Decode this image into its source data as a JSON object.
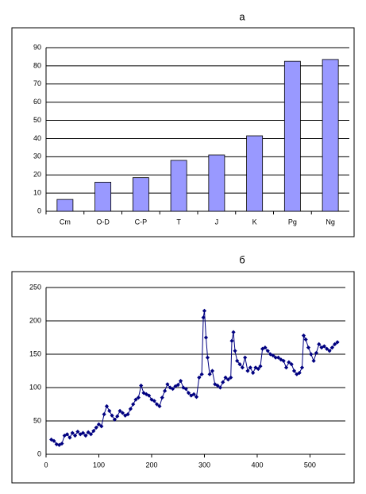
{
  "chart_data": [
    {
      "type": "bar",
      "title": "а",
      "categories": [
        "Cm",
        "O-D",
        "C-P",
        "T",
        "J",
        "K",
        "Pg",
        "Ng"
      ],
      "values": [
        6.5,
        16,
        18.5,
        28,
        31,
        41.5,
        82.5,
        83.5
      ],
      "color": "#9999ff",
      "ylim": [
        0,
        90
      ],
      "yticks": [
        0,
        10,
        20,
        30,
        40,
        50,
        60,
        70,
        80,
        90
      ],
      "grid": true
    },
    {
      "type": "line",
      "title": "б",
      "color": "#000080",
      "x": [
        10,
        15,
        20,
        25,
        30,
        35,
        40,
        45,
        50,
        55,
        60,
        65,
        70,
        75,
        80,
        85,
        90,
        95,
        100,
        105,
        110,
        115,
        120,
        125,
        130,
        135,
        140,
        145,
        150,
        155,
        160,
        165,
        170,
        175,
        180,
        185,
        190,
        195,
        200,
        205,
        210,
        215,
        220,
        225,
        230,
        235,
        240,
        245,
        250,
        255,
        260,
        265,
        270,
        275,
        280,
        285,
        290,
        295,
        298,
        300,
        303,
        306,
        310,
        315,
        320,
        325,
        330,
        335,
        340,
        345,
        350,
        352,
        355,
        358,
        362,
        367,
        372,
        377,
        382,
        387,
        392,
        397,
        402,
        406,
        410,
        415,
        420,
        425,
        430,
        435,
        440,
        445,
        450,
        455,
        460,
        465,
        470,
        475,
        480,
        485,
        488,
        492,
        497,
        502,
        507,
        512,
        517,
        522,
        527,
        532,
        537,
        542,
        547,
        552
      ],
      "values": [
        22,
        20,
        15,
        14,
        16,
        28,
        30,
        25,
        32,
        28,
        34,
        30,
        32,
        28,
        33,
        30,
        35,
        40,
        45,
        42,
        60,
        72,
        65,
        58,
        52,
        57,
        65,
        62,
        58,
        60,
        68,
        75,
        82,
        85,
        103,
        92,
        90,
        88,
        82,
        80,
        75,
        72,
        85,
        95,
        105,
        100,
        98,
        102,
        104,
        110,
        100,
        98,
        92,
        88,
        90,
        86,
        115,
        120,
        205,
        215,
        175,
        145,
        120,
        125,
        105,
        103,
        100,
        108,
        115,
        112,
        115,
        170,
        183,
        155,
        140,
        135,
        130,
        145,
        125,
        130,
        122,
        130,
        128,
        132,
        158,
        160,
        155,
        150,
        148,
        145,
        145,
        142,
        140,
        130,
        138,
        135,
        125,
        120,
        122,
        130,
        178,
        172,
        160,
        150,
        140,
        152,
        165,
        160,
        162,
        158,
        155,
        160,
        165,
        168
      ],
      "xlim": [
        0,
        567
      ],
      "xticks": [
        0,
        100,
        200,
        300,
        400,
        500
      ],
      "ylim": [
        0,
        250
      ],
      "yticks": [
        0,
        50,
        100,
        150,
        200,
        250
      ],
      "grid": true
    }
  ]
}
